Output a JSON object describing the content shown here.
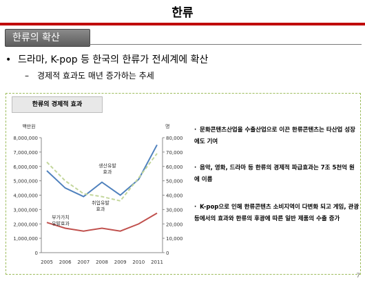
{
  "slide": {
    "title": "한류",
    "section": "한류의 확산",
    "bullet_main": "드라마, K-pop 등 한국의 한류가 전세계에 확산",
    "bullet_sub": "경제적 효과도 매년 증가하는 추세",
    "chart_title": "한류의 경제적 효과",
    "notes": [
      "문화콘텐츠산업을 수출산업으로 이끈 한류콘텐츠는 타산업 성장에도 기여",
      "음악, 영화, 드라마 등 한류의 경제적 파급효과는 7조 5천억 원에 이름",
      "K-pop으로 인해 한류콘텐츠 소비지역이 다변화 되고 게임, 관광 등에서의 효과와 한류의 후광에 따른 일반 제품의 수출 증가"
    ],
    "page_number": "7"
  },
  "chart_data": {
    "type": "line",
    "x": [
      "2005",
      "2006",
      "2007",
      "2008",
      "2009",
      "2010",
      "2011"
    ],
    "y_left_label": "백만원",
    "y_right_label": "명",
    "y_left_ticks": [
      "0",
      "1,000,000",
      "2,000,000",
      "3,000,000",
      "4,000,000",
      "5,000,000",
      "6,000,000",
      "7,000,000",
      "8,000,000"
    ],
    "y_right_ticks": [
      "0",
      "10,000",
      "20,000",
      "30,000",
      "40,000",
      "50,000",
      "60,000",
      "70,000",
      "80,000"
    ],
    "ylim_left": [
      0,
      8000000
    ],
    "ylim_right": [
      0,
      80000
    ],
    "series": [
      {
        "name": "생산유발효과",
        "axis": "left",
        "color": "#4f81bd",
        "values": [
          5700000,
          4500000,
          3900000,
          4900000,
          4000000,
          5100000,
          7500000
        ]
      },
      {
        "name": "취업유발효과",
        "axis": "right",
        "color": "#c3d69b",
        "dash": true,
        "values": [
          63000,
          50000,
          41000,
          39000,
          36000,
          52000,
          69000
        ]
      },
      {
        "name": "부가가치유발효과",
        "axis": "left",
        "color": "#c0504d",
        "values": [
          2100000,
          1700000,
          1500000,
          1700000,
          1500000,
          2000000,
          2750000
        ]
      }
    ],
    "annotations": [
      "생산유발\n효과",
      "취업유발\n효과",
      "부가가치\n유발효과"
    ]
  }
}
